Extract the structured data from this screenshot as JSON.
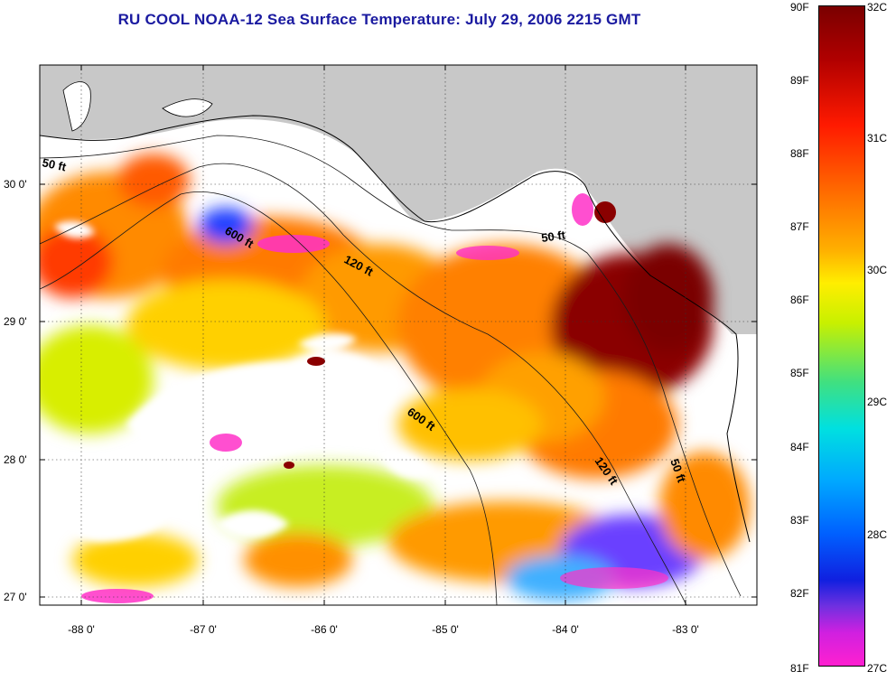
{
  "title": "RU COOL  NOAA-12  Sea Surface Temperature:  July 29, 2006 2215 GMT",
  "map": {
    "lat_labels": [
      "30 0'",
      "29 0'",
      "28 0'",
      "27 0'"
    ],
    "lon_labels": [
      "-88 0'",
      "-87 0'",
      "-86 0'",
      "-85 0'",
      "-84 0'",
      "-83 0'"
    ],
    "contour_labels": [
      "50 ft",
      "600 ft",
      "120 ft",
      "50 ft",
      "600 ft",
      "120 ft",
      "50 ft"
    ],
    "colors": {
      "land": "#c8c8c8",
      "water_nodata": "#ffffff"
    }
  },
  "colorbar": {
    "fahrenheit_labels": [
      "90F",
      "89F",
      "88F",
      "87F",
      "86F",
      "85F",
      "84F",
      "83F",
      "82F",
      "81F"
    ],
    "celsius_labels": [
      "32C",
      "31C",
      "30C",
      "29C",
      "28C",
      "27C"
    ],
    "range_f": [
      81,
      90
    ],
    "range_c": [
      27,
      32
    ]
  }
}
